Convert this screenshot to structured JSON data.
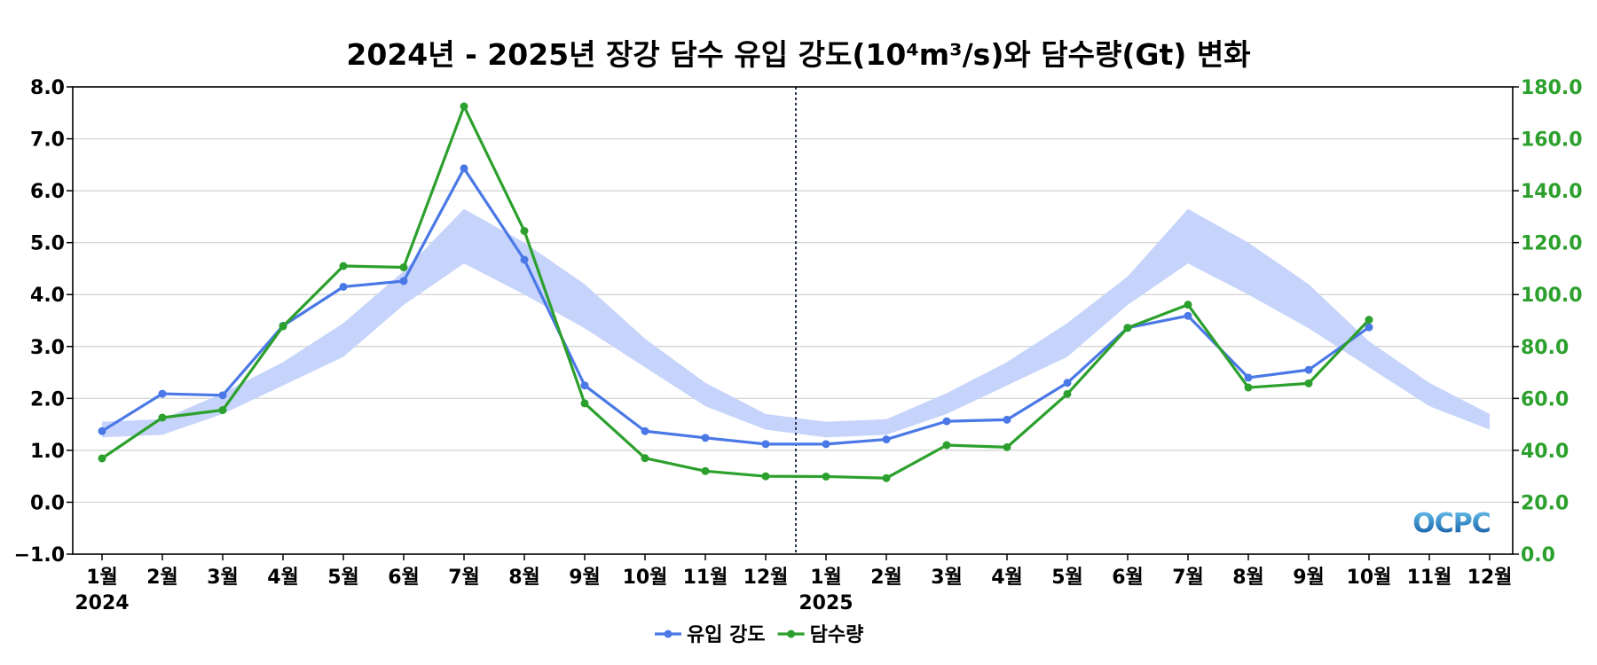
{
  "chart_data": {
    "type": "line",
    "title": "2024년 - 2025년 장강 담수 유입 강도(10⁴m³/s)와 담수량(Gt) 변화",
    "categories": [
      "1월",
      "2월",
      "3월",
      "4월",
      "5월",
      "6월",
      "7월",
      "8월",
      "9월",
      "10월",
      "11월",
      "12월",
      "1월",
      "2월",
      "3월",
      "4월",
      "5월",
      "6월",
      "7월",
      "8월",
      "9월",
      "10월",
      "11월",
      "12월"
    ],
    "year_labels": [
      {
        "label": "2024",
        "index": 0
      },
      {
        "label": "2025",
        "index": 12
      }
    ],
    "divider_after_index": 11,
    "y_left": {
      "min": -1.0,
      "max": 8.0,
      "step": 1.0,
      "color": "#000000"
    },
    "y_right": {
      "min": 0.0,
      "max": 180.0,
      "step": 20.0,
      "color": "#2ca02c"
    },
    "band": {
      "color": "#c6d4fb",
      "upper": [
        1.55,
        1.6,
        2.1,
        2.7,
        3.45,
        4.45,
        5.65,
        5.0,
        4.2,
        3.15,
        2.3,
        1.7,
        1.55,
        1.6,
        2.1,
        2.7,
        3.45,
        4.35,
        5.65,
        5.0,
        4.2,
        3.1,
        2.3,
        1.7
      ],
      "lower": [
        1.25,
        1.3,
        1.7,
        2.25,
        2.8,
        3.8,
        4.6,
        4.0,
        3.35,
        2.6,
        1.85,
        1.4,
        1.25,
        1.3,
        1.7,
        2.25,
        2.8,
        3.8,
        4.6,
        4.0,
        3.35,
        2.6,
        1.85,
        1.4
      ]
    },
    "series": [
      {
        "name": "유입 강도",
        "axis": "left",
        "color": "#4a78e6",
        "values": [
          1.37,
          2.09,
          2.06,
          3.4,
          4.15,
          4.26,
          6.43,
          4.67,
          2.25,
          1.37,
          1.24,
          1.12,
          1.12,
          1.21,
          1.56,
          1.59,
          2.3,
          3.36,
          3.59,
          2.4,
          2.55,
          3.37,
          null,
          null
        ]
      },
      {
        "name": "담수량",
        "axis": "right",
        "color": "#2ca02c",
        "values": [
          36.9,
          52.6,
          55.5,
          87.8,
          111.0,
          110.5,
          172.5,
          124.5,
          58.1,
          37.0,
          32.0,
          30.0,
          29.9,
          29.3,
          42.0,
          41.2,
          61.7,
          87.2,
          96.1,
          64.2,
          65.8,
          90.3,
          null,
          null
        ]
      }
    ],
    "watermark": "OCPC",
    "legend_position": "bottom-center"
  }
}
